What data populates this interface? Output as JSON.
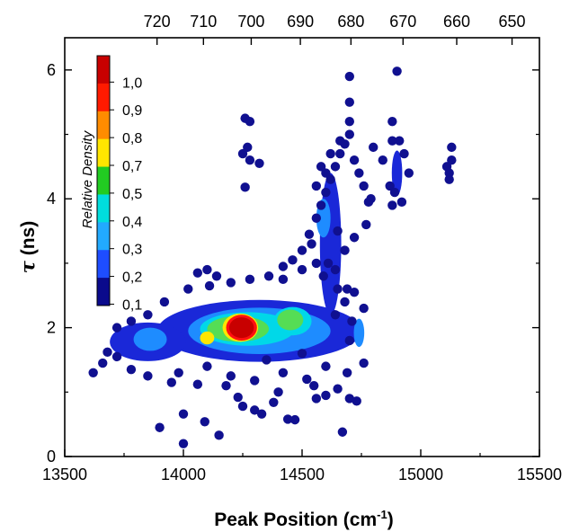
{
  "chart_data": {
    "type": "scatter",
    "title": "",
    "xlabel": "Peak Position (cm",
    "xlabel_sup": "-1",
    "xlabel_close": ")",
    "ylabel_symbol": "τ",
    "ylabel_unit": " (ns)",
    "xlim": [
      13500,
      15500
    ],
    "ylim": [
      0,
      6.5
    ],
    "x_ticks": [
      13500,
      14000,
      14500,
      15000,
      15500
    ],
    "x_tick_labels": [
      "13500",
      "14000",
      "14500",
      "15000",
      "15500"
    ],
    "y_ticks": [
      0,
      2,
      4,
      6
    ],
    "y_tick_labels": [
      "0",
      "2",
      "4",
      "6"
    ],
    "top_axis_ticks_nm": [
      720,
      710,
      700,
      690,
      680,
      670,
      660,
      650
    ],
    "top_axis_tick_labels": [
      "720",
      "710",
      "700",
      "690",
      "680",
      "670",
      "660",
      "650"
    ],
    "grid": false,
    "legend": "none",
    "colorbar": {
      "title": "Relative Density",
      "labels": [
        "1,0",
        "0,9",
        "0,8",
        "0,7",
        "0,5",
        "0,4",
        "0,3",
        "0,2",
        "0,1"
      ],
      "colors": [
        "#c80000",
        "#ff1a00",
        "#ff8c00",
        "#ffe600",
        "#22cc22",
        "#00dddd",
        "#22aaff",
        "#1e4dff",
        "#0a0a8c"
      ]
    },
    "point_color": "#101090",
    "density_colors": {
      "low": "#1a28d8",
      "mid_low": "#1e8cff",
      "mid": "#00d8e8",
      "mid_high": "#55dd55",
      "high": "#ffe600",
      "peak": "#ff1010",
      "core": "#c80000"
    },
    "density_regions": [
      {
        "level": "low",
        "cx": 14320,
        "cy": 1.95,
        "rx": 430,
        "ry": 0.48
      },
      {
        "level": "low",
        "cx": 13850,
        "cy": 1.78,
        "rx": 160,
        "ry": 0.3
      },
      {
        "level": "low",
        "cx": 14620,
        "cy": 3.3,
        "rx": 45,
        "ry": 1.1
      },
      {
        "level": "low",
        "cx": 14900,
        "cy": 4.4,
        "rx": 22,
        "ry": 0.35
      },
      {
        "level": "mid_low",
        "cx": 14320,
        "cy": 1.95,
        "rx": 300,
        "ry": 0.36
      },
      {
        "level": "mid_low",
        "cx": 13860,
        "cy": 1.82,
        "rx": 70,
        "ry": 0.18
      },
      {
        "level": "mid_low",
        "cx": 14740,
        "cy": 1.92,
        "rx": 22,
        "ry": 0.22
      },
      {
        "level": "mid_low",
        "cx": 14590,
        "cy": 3.7,
        "rx": 30,
        "ry": 0.3
      },
      {
        "level": "mid",
        "cx": 14270,
        "cy": 1.98,
        "rx": 200,
        "ry": 0.26
      },
      {
        "level": "mid",
        "cx": 14460,
        "cy": 2.1,
        "rx": 80,
        "ry": 0.22
      },
      {
        "level": "mid_high",
        "cx": 14230,
        "cy": 1.98,
        "rx": 130,
        "ry": 0.2
      },
      {
        "level": "mid_high",
        "cx": 14450,
        "cy": 2.12,
        "rx": 55,
        "ry": 0.16
      },
      {
        "level": "high",
        "cx": 14240,
        "cy": 2.0,
        "rx": 75,
        "ry": 0.22
      },
      {
        "level": "high",
        "cx": 14100,
        "cy": 1.84,
        "rx": 30,
        "ry": 0.1
      },
      {
        "level": "peak",
        "cx": 14245,
        "cy": 2.0,
        "rx": 65,
        "ry": 0.2
      },
      {
        "level": "core",
        "cx": 14245,
        "cy": 2.0,
        "rx": 52,
        "ry": 0.16
      }
    ],
    "points": [
      [
        14000,
        0.2
      ],
      [
        13900,
        0.45
      ],
      [
        14150,
        0.33
      ],
      [
        14000,
        0.66
      ],
      [
        14090,
        0.54
      ],
      [
        14230,
        0.92
      ],
      [
        14380,
        0.84
      ],
      [
        14440,
        0.58
      ],
      [
        14470,
        0.57
      ],
      [
        14670,
        0.38
      ],
      [
        14250,
        0.78
      ],
      [
        14300,
        0.72
      ],
      [
        14330,
        0.66
      ],
      [
        14550,
        1.1
      ],
      [
        14600,
        0.95
      ],
      [
        14650,
        1.05
      ],
      [
        14700,
        0.9
      ],
      [
        14730,
        0.86
      ],
      [
        14690,
        1.3
      ],
      [
        14560,
        0.9
      ],
      [
        13620,
        1.3
      ],
      [
        13660,
        1.45
      ],
      [
        13720,
        1.55
      ],
      [
        13680,
        1.62
      ],
      [
        13780,
        1.35
      ],
      [
        13850,
        1.25
      ],
      [
        13950,
        1.15
      ],
      [
        14060,
        1.12
      ],
      [
        14180,
        1.1
      ],
      [
        14300,
        1.18
      ],
      [
        14420,
        1.3
      ],
      [
        14520,
        1.2
      ],
      [
        14600,
        1.4
      ],
      [
        14760,
        1.45
      ],
      [
        14760,
        2.3
      ],
      [
        14720,
        2.55
      ],
      [
        14690,
        2.6
      ],
      [
        14640,
        2.9
      ],
      [
        14560,
        3.0
      ],
      [
        14500,
        2.9
      ],
      [
        14420,
        2.75
      ],
      [
        14360,
        2.8
      ],
      [
        14280,
        2.75
      ],
      [
        14200,
        2.7
      ],
      [
        14110,
        2.65
      ],
      [
        14020,
        2.6
      ],
      [
        13920,
        2.4
      ],
      [
        13850,
        2.2
      ],
      [
        13780,
        2.1
      ],
      [
        13720,
        2.0
      ],
      [
        14060,
        2.85
      ],
      [
        14100,
        2.9
      ],
      [
        14140,
        2.8
      ],
      [
        14420,
        2.95
      ],
      [
        14460,
        3.05
      ],
      [
        14500,
        3.2
      ],
      [
        14530,
        3.45
      ],
      [
        14560,
        3.7
      ],
      [
        14580,
        3.9
      ],
      [
        14600,
        4.1
      ],
      [
        14620,
        4.3
      ],
      [
        14640,
        4.5
      ],
      [
        14660,
        4.7
      ],
      [
        14680,
        4.85
      ],
      [
        14700,
        5.0
      ],
      [
        14700,
        5.2
      ],
      [
        14700,
        5.5
      ],
      [
        14700,
        5.9
      ],
      [
        14660,
        4.9
      ],
      [
        14720,
        4.6
      ],
      [
        14740,
        4.4
      ],
      [
        14760,
        4.2
      ],
      [
        14780,
        3.95
      ],
      [
        14770,
        3.6
      ],
      [
        14720,
        3.4
      ],
      [
        14680,
        3.2
      ],
      [
        14650,
        3.5
      ],
      [
        14610,
        3.0
      ],
      [
        14590,
        2.8
      ],
      [
        14540,
        3.3
      ],
      [
        14790,
        4.0
      ],
      [
        14800,
        4.8
      ],
      [
        14840,
        4.6
      ],
      [
        14880,
        4.9
      ],
      [
        14880,
        5.2
      ],
      [
        14900,
        5.98
      ],
      [
        14870,
        4.2
      ],
      [
        14880,
        3.9
      ],
      [
        14920,
        3.95
      ],
      [
        14930,
        4.7
      ],
      [
        14910,
        4.9
      ],
      [
        14950,
        4.4
      ],
      [
        14890,
        4.1
      ],
      [
        15130,
        4.8
      ],
      [
        15120,
        4.4
      ],
      [
        15130,
        4.6
      ],
      [
        15120,
        4.3
      ],
      [
        15110,
        4.5
      ],
      [
        14260,
        5.25
      ],
      [
        14280,
        5.2
      ],
      [
        14270,
        4.8
      ],
      [
        14280,
        4.6
      ],
      [
        14250,
        4.7
      ],
      [
        14320,
        4.55
      ],
      [
        14260,
        4.18
      ],
      [
        14600,
        4.4
      ],
      [
        14580,
        4.5
      ],
      [
        14620,
        4.7
      ],
      [
        14560,
        4.2
      ],
      [
        14640,
        2.2
      ],
      [
        14700,
        1.8
      ],
      [
        14710,
        2.1
      ],
      [
        14680,
        2.4
      ],
      [
        14650,
        2.6
      ],
      [
        14400,
        1.0
      ],
      [
        14350,
        1.5
      ],
      [
        14500,
        1.6
      ],
      [
        14200,
        1.25
      ],
      [
        14100,
        1.4
      ],
      [
        13980,
        1.3
      ]
    ]
  }
}
